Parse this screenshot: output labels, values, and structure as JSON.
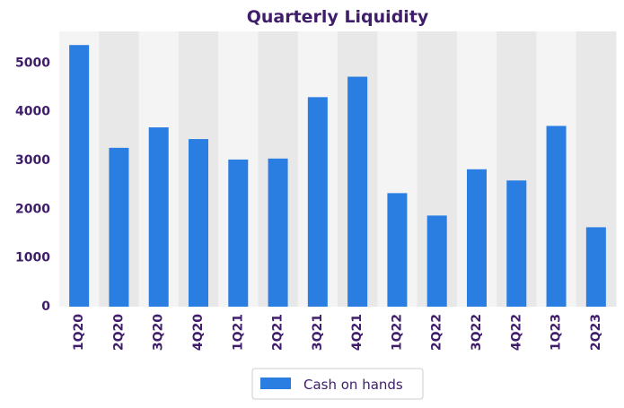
{
  "chart_data": {
    "type": "bar",
    "title": "Quarterly Liquidity",
    "xlabel": "",
    "ylabel": "",
    "categories": [
      "1Q20",
      "2Q20",
      "3Q20",
      "4Q20",
      "1Q21",
      "2Q21",
      "3Q21",
      "4Q21",
      "1Q22",
      "2Q22",
      "3Q22",
      "4Q22",
      "1Q23",
      "2Q23"
    ],
    "series": [
      {
        "name": "Cash on hands",
        "values": [
          5370,
          3260,
          3680,
          3440,
          3020,
          3040,
          4300,
          4720,
          2330,
          1870,
          2820,
          2590,
          3710,
          1630
        ]
      }
    ],
    "ylim": [
      0,
      5650
    ],
    "yticks": [
      0,
      1000,
      2000,
      3000,
      4000,
      5000
    ],
    "grid": false,
    "legend_position": "bottom-center",
    "colors": {
      "bar": "#2a7de1",
      "text": "#3f1d6b",
      "band_light": "#f4f4f4",
      "band_dark": "#e8e8e8",
      "legend_border": "#cccccc"
    }
  }
}
